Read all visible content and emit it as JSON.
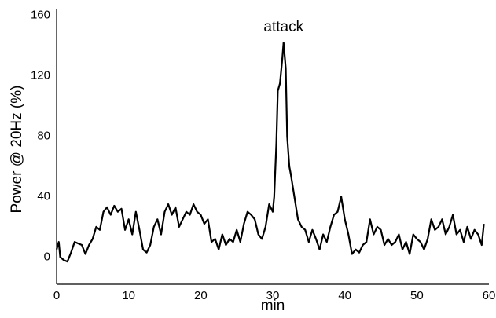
{
  "chart_data": {
    "type": "line",
    "y_label": "Power @ 20Hz (%)",
    "x_label": "min",
    "annotations": [
      {
        "text": "attack",
        "x": 31.5,
        "y": 152
      }
    ],
    "xlim": [
      0,
      60
    ],
    "xticks": [
      0,
      10,
      20,
      30,
      40,
      50,
      60
    ],
    "ylim": [
      -18,
      164
    ],
    "yticks": [
      0,
      40,
      80,
      120,
      160
    ],
    "grid": false,
    "series": [
      {
        "color": "#000000",
        "x": [
          0,
          0.3,
          0.5,
          1,
          1.5,
          2,
          2.5,
          3,
          3.5,
          4,
          4.5,
          5,
          5.5,
          6,
          6.5,
          7,
          7.5,
          8,
          8.5,
          9,
          9.5,
          10,
          10.5,
          11,
          11.5,
          12,
          12.5,
          13,
          13.5,
          14,
          14.5,
          15,
          15.5,
          16,
          16.5,
          17,
          17.5,
          18,
          18.5,
          19,
          19.5,
          20,
          20.5,
          21,
          21.5,
          22,
          22.5,
          23,
          23.5,
          24,
          24.5,
          25,
          25.5,
          26,
          26.5,
          27,
          27.5,
          28,
          28.5,
          29,
          29.5,
          30,
          30.2,
          30.5,
          30.7,
          31,
          31.3,
          31.5,
          31.8,
          32,
          32.3,
          32.5,
          33,
          33.5,
          34,
          34.5,
          35,
          35.5,
          36,
          36.5,
          37,
          37.5,
          38,
          38.5,
          39,
          39.5,
          40,
          40.5,
          41,
          41.5,
          42,
          42.5,
          43,
          43.5,
          44,
          44.5,
          45,
          45.5,
          46,
          46.5,
          47,
          47.5,
          48,
          48.5,
          49,
          49.5,
          50,
          50.5,
          51,
          51.5,
          52,
          52.5,
          53,
          53.5,
          54,
          54.5,
          55,
          55.5,
          56,
          56.5,
          57,
          57.5,
          58,
          58.5,
          59,
          59.3
        ],
        "values": [
          5,
          10,
          0,
          -2,
          -3,
          3,
          10,
          9,
          8,
          2,
          8,
          12,
          20,
          18,
          30,
          33,
          28,
          34,
          30,
          32,
          18,
          25,
          15,
          30,
          18,
          5,
          3,
          8,
          20,
          25,
          15,
          30,
          35,
          28,
          33,
          20,
          25,
          30,
          28,
          35,
          30,
          28,
          22,
          25,
          10,
          12,
          5,
          15,
          8,
          12,
          10,
          18,
          10,
          22,
          30,
          28,
          25,
          15,
          12,
          20,
          35,
          30,
          40,
          75,
          110,
          115,
          130,
          142,
          125,
          80,
          60,
          55,
          40,
          25,
          20,
          18,
          10,
          18,
          12,
          5,
          15,
          10,
          20,
          28,
          30,
          40,
          25,
          15,
          2,
          5,
          3,
          8,
          10,
          25,
          15,
          20,
          18,
          8,
          12,
          8,
          10,
          15,
          5,
          10,
          2,
          15,
          12,
          10,
          5,
          12,
          25,
          18,
          20,
          25,
          15,
          20,
          28,
          15,
          18,
          10,
          20,
          12,
          18,
          15,
          8,
          22
        ]
      }
    ]
  }
}
